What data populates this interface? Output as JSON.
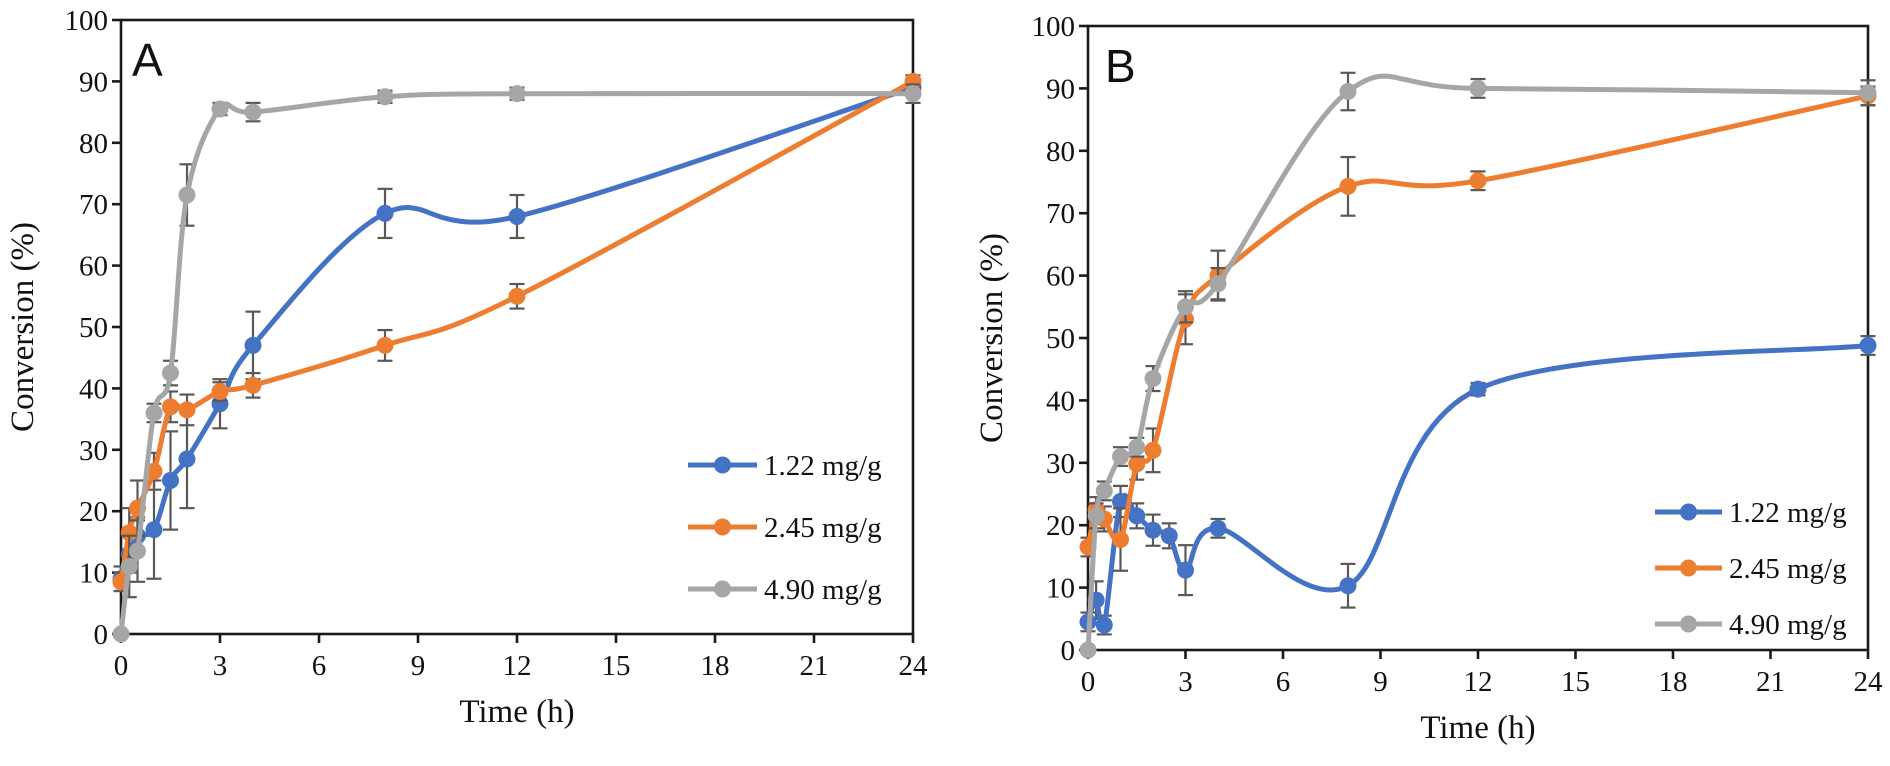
{
  "page": {
    "background": "#ffffff"
  },
  "chart_data": [
    {
      "type": "line",
      "panel_label": "A",
      "xlabel": "Time (h)",
      "ylabel": "Conversion (%)",
      "xlim": [
        0,
        24
      ],
      "ylim": [
        0,
        100
      ],
      "xticks": [
        0,
        3,
        6,
        9,
        12,
        15,
        18,
        21,
        24
      ],
      "yticks": [
        0,
        10,
        20,
        30,
        40,
        50,
        60,
        70,
        80,
        90,
        100
      ],
      "grid": false,
      "legend_position": "inside lower right",
      "error_bar_color": "#595959",
      "series": [
        {
          "name": "1.22 mg/g",
          "color": "#4472C4",
          "x": [
            0,
            0.25,
            0.5,
            1,
            1.5,
            2,
            3,
            4,
            8,
            12,
            24
          ],
          "y": [
            9,
            13,
            16,
            17,
            25,
            28.5,
            37.5,
            47,
            68.5,
            68,
            89
          ],
          "err": [
            2,
            3,
            3,
            8,
            8,
            8,
            4,
            5.5,
            4,
            3.5,
            1
          ]
        },
        {
          "name": "2.45 mg/g",
          "color": "#ED7D31",
          "x": [
            0,
            0.25,
            0.5,
            1,
            1.5,
            2,
            3,
            4,
            8,
            12,
            24
          ],
          "y": [
            8.5,
            16.5,
            20.5,
            26.5,
            37,
            36.5,
            39.5,
            40.5,
            47,
            55,
            90
          ],
          "err": [
            1.5,
            4,
            4.5,
            3,
            2.5,
            2.5,
            1.5,
            2,
            2.5,
            2,
            1
          ]
        },
        {
          "name": "4.90 mg/g",
          "color": "#A6A6A6",
          "x": [
            0,
            0.25,
            0.5,
            1,
            1.5,
            2,
            3,
            4,
            8,
            12,
            24
          ],
          "y": [
            0,
            11,
            13.5,
            36,
            42.5,
            71.5,
            85.5,
            85,
            87.5,
            88,
            88
          ],
          "err": [
            0.5,
            5,
            5,
            1.5,
            2,
            5,
            1,
            1.5,
            1,
            1,
            1.5
          ]
        }
      ]
    },
    {
      "type": "line",
      "panel_label": "B",
      "xlabel": "Time (h)",
      "ylabel": "Conversion (%)",
      "xlim": [
        0,
        24
      ],
      "ylim": [
        0,
        100
      ],
      "xticks": [
        0,
        3,
        6,
        9,
        12,
        15,
        18,
        21,
        24
      ],
      "yticks": [
        0,
        10,
        20,
        30,
        40,
        50,
        60,
        70,
        80,
        90,
        100
      ],
      "grid": false,
      "legend_position": "inside lower right",
      "error_bar_color": "#595959",
      "series": [
        {
          "name": "1.22 mg/g",
          "color": "#4472C4",
          "x": [
            0,
            0.25,
            0.5,
            1,
            1.5,
            2,
            2.5,
            3,
            4,
            8,
            12,
            24
          ],
          "y": [
            4.5,
            8,
            4,
            23.8,
            21.5,
            19.2,
            18.3,
            12.8,
            19.5,
            10.3,
            41.8,
            48.8
          ],
          "err": [
            1.5,
            3,
            1.5,
            2.5,
            2,
            2.5,
            2,
            4,
            1.5,
            3.5,
            1,
            1.5
          ]
        },
        {
          "name": "2.45 mg/g",
          "color": "#ED7D31",
          "x": [
            0,
            0.25,
            0.5,
            1,
            1.5,
            2,
            3,
            4,
            8,
            12,
            24
          ],
          "y": [
            16.5,
            22.5,
            21,
            17.7,
            29.8,
            32,
            53,
            60,
            74.3,
            75.2,
            88.8
          ],
          "err": [
            1.5,
            2,
            2,
            5,
            2.5,
            3.5,
            4,
            4,
            4.7,
            1.5,
            1.5
          ]
        },
        {
          "name": "4.90 mg/g",
          "color": "#A6A6A6",
          "x": [
            0,
            0.25,
            0.5,
            1,
            1.5,
            2,
            3,
            4,
            8,
            12,
            24
          ],
          "y": [
            0,
            21.5,
            25.5,
            31,
            32.5,
            43.5,
            55,
            58.7,
            89.5,
            90,
            89.3
          ],
          "err": [
            0.5,
            2,
            1.5,
            1.5,
            1.5,
            2,
            2.5,
            2.5,
            3,
            1.5,
            2
          ]
        }
      ]
    }
  ]
}
